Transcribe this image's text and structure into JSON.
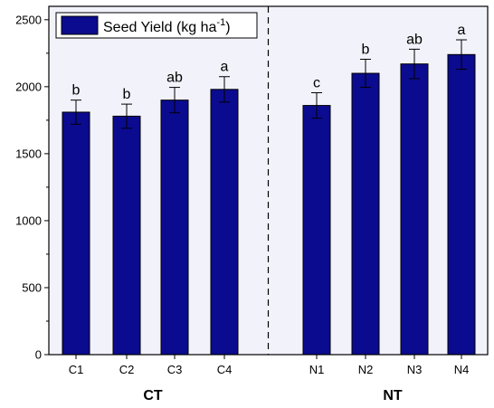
{
  "chart_data": {
    "type": "bar",
    "categories": [
      "C1",
      "C2",
      "C3",
      "C4",
      "N1",
      "N2",
      "N3",
      "N4"
    ],
    "values": [
      1810,
      1780,
      1900,
      1980,
      1860,
      2100,
      2170,
      2240
    ],
    "errors": [
      90,
      90,
      95,
      95,
      95,
      105,
      110,
      110
    ],
    "significance": [
      "b",
      "b",
      "ab",
      "a",
      "c",
      "b",
      "ab",
      "a"
    ],
    "groups": [
      {
        "label": "CT",
        "categories": [
          "C1",
          "C2",
          "C3",
          "C4"
        ]
      },
      {
        "label": "NT",
        "categories": [
          "N1",
          "N2",
          "N3",
          "N4"
        ]
      }
    ],
    "series": [
      {
        "name": "Seed Yield (kg ha",
        "name_superscript": "-1",
        "name_suffix": ")"
      }
    ],
    "ylim": [
      0,
      2600
    ],
    "yticks": [
      0,
      500,
      1000,
      1500,
      2000,
      2500
    ],
    "xlabel": "",
    "ylabel": "",
    "legend_position": "top-left",
    "group_divider": "dashed",
    "colors": {
      "bar_fill": "#0b0b8f",
      "bar_stroke": "#000000",
      "panel_background": "#f2f2fb",
      "axis": "#000000"
    }
  }
}
